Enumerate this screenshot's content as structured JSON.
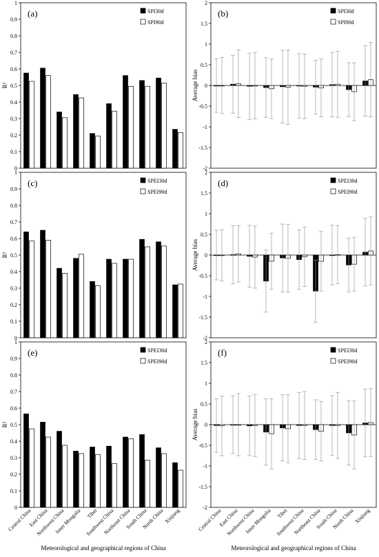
{
  "categories": [
    "Central China",
    "East China",
    "Northwest China",
    "Inner Mongolia",
    "Tibet",
    "Southwest China",
    "Northeast China",
    "South China",
    "North China",
    "Xinjiang"
  ],
  "xlabel": "Meteorological and geographical regions of China",
  "colors": {
    "first": "#000000",
    "second": "#ffffff",
    "error": "#999999"
  },
  "chart_data": [
    {
      "type": "bar",
      "panel": "(a)",
      "ylabel": "R²",
      "ylim": [
        0,
        1
      ],
      "yticks": [
        "0",
        "0.1",
        "0.2",
        "0.3",
        "0.4",
        "0.5",
        "0.6",
        "0.7",
        "0.8",
        "0.9",
        "1"
      ],
      "legend_position": "top-right",
      "series": [
        {
          "name": "SPI30d",
          "values": [
            0.575,
            0.605,
            0.34,
            0.445,
            0.21,
            0.39,
            0.56,
            0.53,
            0.545,
            0.235
          ]
        },
        {
          "name": "SPI90d",
          "values": [
            0.525,
            0.56,
            0.305,
            0.425,
            0.195,
            0.345,
            0.495,
            0.495,
            0.515,
            0.215
          ]
        }
      ]
    },
    {
      "type": "bar",
      "panel": "(b)",
      "ylabel": "Average bias",
      "ylim": [
        -2,
        2
      ],
      "yticks": [
        "-2",
        "-1.5",
        "-1",
        "-0.5",
        "0",
        "0.5",
        "1",
        "1.5",
        "2"
      ],
      "legend_position": "top-right",
      "series": [
        {
          "name": "SPI30d",
          "values": [
            0.0,
            0.03,
            -0.02,
            -0.05,
            -0.03,
            -0.01,
            -0.04,
            0.02,
            -0.1,
            0.11
          ],
          "errors": [
            0.65,
            0.7,
            0.8,
            0.72,
            0.88,
            0.78,
            0.65,
            0.78,
            0.65,
            0.85
          ]
        },
        {
          "name": "SPI90d",
          "values": [
            0.0,
            0.04,
            -0.01,
            -0.08,
            -0.04,
            -0.02,
            -0.06,
            0.03,
            -0.15,
            0.14
          ],
          "errors": [
            0.68,
            0.82,
            0.8,
            0.72,
            0.9,
            0.78,
            0.7,
            0.8,
            0.7,
            0.9
          ]
        }
      ]
    },
    {
      "type": "bar",
      "panel": "(c)",
      "ylabel": "R²",
      "ylim": [
        0,
        1
      ],
      "yticks": [
        "0",
        "0.1",
        "0.2",
        "0.3",
        "0.4",
        "0.5",
        "0.6",
        "0.7",
        "0.8",
        "0.9",
        "1"
      ],
      "legend_position": "top-right",
      "series": [
        {
          "name": "SPEI30d",
          "values": [
            0.64,
            0.65,
            0.42,
            0.48,
            0.34,
            0.475,
            0.475,
            0.595,
            0.58,
            0.32
          ]
        },
        {
          "name": "SPEI90d",
          "values": [
            0.585,
            0.59,
            0.39,
            0.505,
            0.315,
            0.45,
            0.475,
            0.55,
            0.555,
            0.325
          ]
        }
      ]
    },
    {
      "type": "bar",
      "panel": "(d)",
      "ylabel": "Average bias",
      "ylim": [
        -2,
        2
      ],
      "yticks": [
        "-2",
        "-1.5",
        "-1",
        "-0.5",
        "0",
        "0.5",
        "1",
        "1.5",
        "2"
      ],
      "legend_position": "top-right",
      "series": [
        {
          "name": "SPEI30d",
          "values": [
            0.0,
            0.01,
            -0.03,
            -0.63,
            -0.07,
            -0.11,
            -0.87,
            0.0,
            -0.24,
            0.07
          ],
          "errors": [
            0.6,
            0.7,
            0.75,
            0.75,
            0.82,
            0.72,
            0.75,
            0.72,
            0.65,
            0.82
          ]
        },
        {
          "name": "SPEI90d",
          "values": [
            -0.01,
            0.03,
            -0.05,
            -0.15,
            -0.08,
            -0.04,
            -0.15,
            0.01,
            -0.22,
            0.1
          ],
          "errors": [
            0.62,
            0.68,
            0.75,
            0.68,
            0.82,
            0.72,
            0.72,
            0.7,
            0.65,
            0.82
          ]
        }
      ]
    },
    {
      "type": "bar",
      "panel": "(e)",
      "ylabel": "R²",
      "ylim": [
        0,
        1
      ],
      "yticks": [
        "0",
        "0.1",
        "0.2",
        "0.3",
        "0.4",
        "0.5",
        "0.6",
        "0.7",
        "0.8",
        "0.9",
        "1"
      ],
      "legend_position": "top-right",
      "series": [
        {
          "name": "SPEI30d",
          "values": [
            0.565,
            0.515,
            0.46,
            0.34,
            0.365,
            0.37,
            0.425,
            0.44,
            0.36,
            0.27
          ]
        },
        {
          "name": "SPEI90d",
          "values": [
            0.475,
            0.425,
            0.375,
            0.325,
            0.32,
            0.265,
            0.415,
            0.285,
            0.325,
            0.225
          ]
        }
      ]
    },
    {
      "type": "bar",
      "panel": "(f)",
      "ylabel": "Average bias",
      "ylim": [
        -2,
        2
      ],
      "yticks": [
        "-2",
        "-1.5",
        "-1",
        "-0.5",
        "0",
        "0.5",
        "1",
        "1.5",
        "2"
      ],
      "legend_position": "top-right",
      "series": [
        {
          "name": "SPEI30d",
          "values": [
            -0.02,
            0.0,
            -0.03,
            -0.18,
            -0.08,
            -0.02,
            -0.12,
            -0.02,
            -0.2,
            0.04
          ],
          "errors": [
            0.65,
            0.7,
            0.72,
            0.8,
            0.8,
            0.8,
            0.72,
            0.72,
            0.78,
            0.82
          ]
        },
        {
          "name": "SPEI90d",
          "values": [
            -0.03,
            0.0,
            -0.02,
            -0.22,
            -0.1,
            -0.02,
            -0.16,
            -0.02,
            -0.25,
            0.05
          ],
          "errors": [
            0.72,
            0.75,
            0.75,
            0.85,
            0.82,
            0.82,
            0.72,
            0.8,
            0.82,
            0.82
          ]
        }
      ]
    }
  ]
}
